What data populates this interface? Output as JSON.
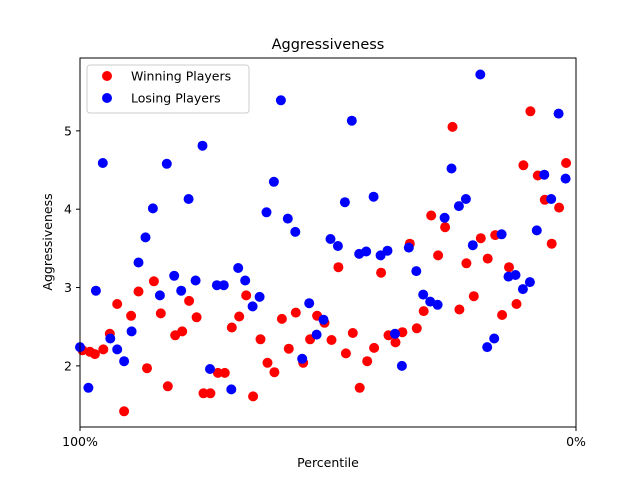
{
  "chart_data": {
    "type": "scatter",
    "title": "Aggressiveness",
    "xlabel": "Percentile",
    "ylabel": "Aggressiveness",
    "x_tick_labels": [
      "100%",
      "0%"
    ],
    "x_direction": "reversed",
    "xlim": [
      0,
      100
    ],
    "ylim": [
      1.22,
      5.93
    ],
    "yticks": [
      2,
      3,
      4,
      5
    ],
    "grid": false,
    "legend": "top-left",
    "series": [
      {
        "name": "Winning Players",
        "color": "#ff0000",
        "points": [
          {
            "x": 0.5,
            "y": 2.2
          },
          {
            "x": 2.0,
            "y": 2.18
          },
          {
            "x": 3.0,
            "y": 2.15
          },
          {
            "x": 4.7,
            "y": 2.21
          },
          {
            "x": 6.0,
            "y": 2.41
          },
          {
            "x": 7.5,
            "y": 2.79
          },
          {
            "x": 8.9,
            "y": 1.42
          },
          {
            "x": 10.3,
            "y": 2.64
          },
          {
            "x": 11.8,
            "y": 2.95
          },
          {
            "x": 13.5,
            "y": 1.97
          },
          {
            "x": 14.9,
            "y": 3.08
          },
          {
            "x": 16.3,
            "y": 2.67
          },
          {
            "x": 17.7,
            "y": 1.74
          },
          {
            "x": 19.2,
            "y": 2.39
          },
          {
            "x": 20.6,
            "y": 2.44
          },
          {
            "x": 22.0,
            "y": 2.83
          },
          {
            "x": 23.5,
            "y": 2.62
          },
          {
            "x": 24.9,
            "y": 1.65
          },
          {
            "x": 26.3,
            "y": 1.65
          },
          {
            "x": 27.8,
            "y": 1.91
          },
          {
            "x": 29.2,
            "y": 1.91
          },
          {
            "x": 30.6,
            "y": 2.49
          },
          {
            "x": 32.1,
            "y": 2.63
          },
          {
            "x": 33.5,
            "y": 2.9
          },
          {
            "x": 34.9,
            "y": 1.61
          },
          {
            "x": 36.4,
            "y": 2.34
          },
          {
            "x": 37.8,
            "y": 2.04
          },
          {
            "x": 39.2,
            "y": 1.92
          },
          {
            "x": 40.7,
            "y": 2.6
          },
          {
            "x": 42.1,
            "y": 2.22
          },
          {
            "x": 43.5,
            "y": 2.68
          },
          {
            "x": 45.0,
            "y": 2.04
          },
          {
            "x": 46.4,
            "y": 2.34
          },
          {
            "x": 47.8,
            "y": 2.64
          },
          {
            "x": 49.3,
            "y": 2.55
          },
          {
            "x": 50.7,
            "y": 2.33
          },
          {
            "x": 52.1,
            "y": 3.26
          },
          {
            "x": 53.6,
            "y": 2.16
          },
          {
            "x": 55.0,
            "y": 2.42
          },
          {
            "x": 56.4,
            "y": 1.72
          },
          {
            "x": 57.9,
            "y": 2.06
          },
          {
            "x": 59.3,
            "y": 2.23
          },
          {
            "x": 60.7,
            "y": 3.19
          },
          {
            "x": 62.2,
            "y": 2.39
          },
          {
            "x": 63.6,
            "y": 2.3
          },
          {
            "x": 65.0,
            "y": 2.43
          },
          {
            "x": 66.5,
            "y": 3.56
          },
          {
            "x": 67.9,
            "y": 2.48
          },
          {
            "x": 69.3,
            "y": 2.7
          },
          {
            "x": 70.8,
            "y": 3.92
          },
          {
            "x": 72.2,
            "y": 3.41
          },
          {
            "x": 73.6,
            "y": 3.77
          },
          {
            "x": 75.1,
            "y": 5.05
          },
          {
            "x": 76.5,
            "y": 2.72
          },
          {
            "x": 77.9,
            "y": 3.31
          },
          {
            "x": 79.4,
            "y": 2.89
          },
          {
            "x": 80.8,
            "y": 3.63
          },
          {
            "x": 82.2,
            "y": 3.37
          },
          {
            "x": 83.7,
            "y": 3.67
          },
          {
            "x": 85.1,
            "y": 2.65
          },
          {
            "x": 86.5,
            "y": 3.26
          },
          {
            "x": 88.0,
            "y": 2.79
          },
          {
            "x": 89.4,
            "y": 4.56
          },
          {
            "x": 90.8,
            "y": 5.25
          },
          {
            "x": 92.3,
            "y": 4.43
          },
          {
            "x": 93.7,
            "y": 4.12
          },
          {
            "x": 95.1,
            "y": 3.56
          },
          {
            "x": 96.6,
            "y": 4.02
          },
          {
            "x": 98.0,
            "y": 4.59
          }
        ]
      },
      {
        "name": "Losing Players",
        "color": "#0000ff",
        "points": [
          {
            "x": 0.0,
            "y": 2.24
          },
          {
            "x": 1.7,
            "y": 1.72
          },
          {
            "x": 3.2,
            "y": 2.96
          },
          {
            "x": 4.6,
            "y": 4.59
          },
          {
            "x": 6.1,
            "y": 2.35
          },
          {
            "x": 7.5,
            "y": 2.21
          },
          {
            "x": 8.9,
            "y": 2.06
          },
          {
            "x": 10.4,
            "y": 2.44
          },
          {
            "x": 11.8,
            "y": 3.32
          },
          {
            "x": 13.2,
            "y": 3.64
          },
          {
            "x": 14.7,
            "y": 4.01
          },
          {
            "x": 16.1,
            "y": 2.9
          },
          {
            "x": 17.5,
            "y": 4.58
          },
          {
            "x": 19.0,
            "y": 3.15
          },
          {
            "x": 20.4,
            "y": 2.96
          },
          {
            "x": 21.9,
            "y": 4.13
          },
          {
            "x": 23.3,
            "y": 3.09
          },
          {
            "x": 24.7,
            "y": 4.81
          },
          {
            "x": 26.2,
            "y": 1.96
          },
          {
            "x": 27.6,
            "y": 3.03
          },
          {
            "x": 29.0,
            "y": 3.03
          },
          {
            "x": 30.5,
            "y": 1.7
          },
          {
            "x": 31.9,
            "y": 3.25
          },
          {
            "x": 33.3,
            "y": 3.09
          },
          {
            "x": 34.8,
            "y": 2.76
          },
          {
            "x": 36.2,
            "y": 2.88
          },
          {
            "x": 37.6,
            "y": 3.96
          },
          {
            "x": 39.1,
            "y": 4.35
          },
          {
            "x": 40.5,
            "y": 5.39
          },
          {
            "x": 41.9,
            "y": 3.88
          },
          {
            "x": 43.4,
            "y": 3.71
          },
          {
            "x": 44.8,
            "y": 2.09
          },
          {
            "x": 46.2,
            "y": 2.8
          },
          {
            "x": 47.7,
            "y": 2.4
          },
          {
            "x": 49.1,
            "y": 2.59
          },
          {
            "x": 50.5,
            "y": 3.62
          },
          {
            "x": 52.0,
            "y": 3.53
          },
          {
            "x": 53.4,
            "y": 4.09
          },
          {
            "x": 54.8,
            "y": 5.13
          },
          {
            "x": 56.3,
            "y": 3.43
          },
          {
            "x": 57.7,
            "y": 3.46
          },
          {
            "x": 59.2,
            "y": 4.16
          },
          {
            "x": 60.6,
            "y": 3.41
          },
          {
            "x": 62.0,
            "y": 3.47
          },
          {
            "x": 63.5,
            "y": 2.41
          },
          {
            "x": 64.9,
            "y": 2.0
          },
          {
            "x": 66.3,
            "y": 3.51
          },
          {
            "x": 67.8,
            "y": 3.21
          },
          {
            "x": 69.2,
            "y": 2.91
          },
          {
            "x": 70.6,
            "y": 2.82
          },
          {
            "x": 72.1,
            "y": 2.78
          },
          {
            "x": 73.5,
            "y": 3.89
          },
          {
            "x": 74.9,
            "y": 4.52
          },
          {
            "x": 76.4,
            "y": 4.04
          },
          {
            "x": 77.8,
            "y": 4.13
          },
          {
            "x": 79.2,
            "y": 3.54
          },
          {
            "x": 80.7,
            "y": 5.72
          },
          {
            "x": 82.1,
            "y": 2.24
          },
          {
            "x": 83.5,
            "y": 2.35
          },
          {
            "x": 85.0,
            "y": 3.68
          },
          {
            "x": 86.4,
            "y": 3.14
          },
          {
            "x": 87.8,
            "y": 3.16
          },
          {
            "x": 89.3,
            "y": 2.98
          },
          {
            "x": 90.7,
            "y": 3.07
          },
          {
            "x": 92.1,
            "y": 3.73
          },
          {
            "x": 93.6,
            "y": 4.44
          },
          {
            "x": 95.0,
            "y": 4.13
          },
          {
            "x": 96.5,
            "y": 5.22
          },
          {
            "x": 97.9,
            "y": 4.39
          }
        ]
      }
    ]
  }
}
